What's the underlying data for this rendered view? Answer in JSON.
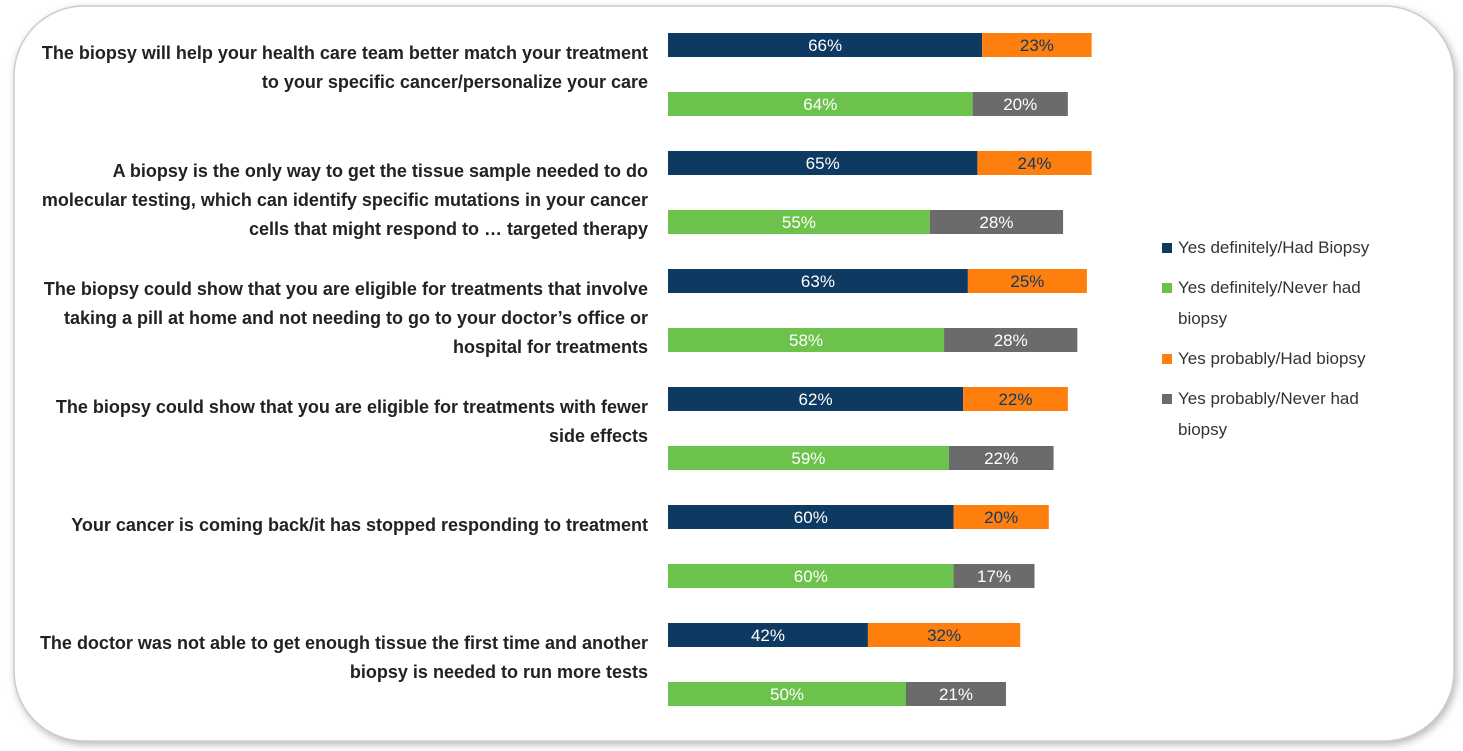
{
  "chart_data": {
    "type": "grouped_stacked_bar",
    "categories": [
      "The biopsy will help your health care team better match your treatment to your specific cancer/personalize your care",
      "A biopsy is the only way to get the tissue sample needed to do molecular testing, which can identify specific mutations in your cancer cells that might respond to … targeted therapy",
      "The biopsy could show that you are eligible for treatments that involve taking a pill at home and not needing to go to your doctor’s office or hospital for treatments",
      "The biopsy could show that you are eligible for treatments with fewer side effects",
      "Your cancer is coming back/it has stopped responding to treatment",
      "The doctor was not able to get enough tissue the first time and another biopsy is needed to run more tests"
    ],
    "series": [
      {
        "name": "Yes definitely/Had Biopsy",
        "color": "#0e3a62",
        "values": [
          66,
          65,
          63,
          62,
          60,
          42
        ],
        "value_labels": [
          "66%",
          "65%",
          "63%",
          "62%",
          "60%",
          "42%"
        ]
      },
      {
        "name": "Yes definitely/Never had biopsy",
        "color": "#6cc24a",
        "values": [
          64,
          55,
          58,
          59,
          60,
          50
        ],
        "value_labels": [
          "64%",
          "55%",
          "58%",
          "59%",
          "60%",
          "50%"
        ]
      },
      {
        "name": "Yes probably/Had biopsy",
        "color": "#ff7f0e",
        "values": [
          23,
          24,
          25,
          22,
          20,
          32
        ],
        "value_labels": [
          "23%",
          "24%",
          "25%",
          "22%",
          "20%",
          "32%"
        ]
      },
      {
        "name": "Yes probably/Never had biopsy",
        "color": "#6b6b6b",
        "values": [
          20,
          28,
          28,
          22,
          17,
          21
        ],
        "value_labels": [
          "20%",
          "28%",
          "28%",
          "22%",
          "17%",
          "21%"
        ]
      }
    ],
    "legend": "right"
  }
}
